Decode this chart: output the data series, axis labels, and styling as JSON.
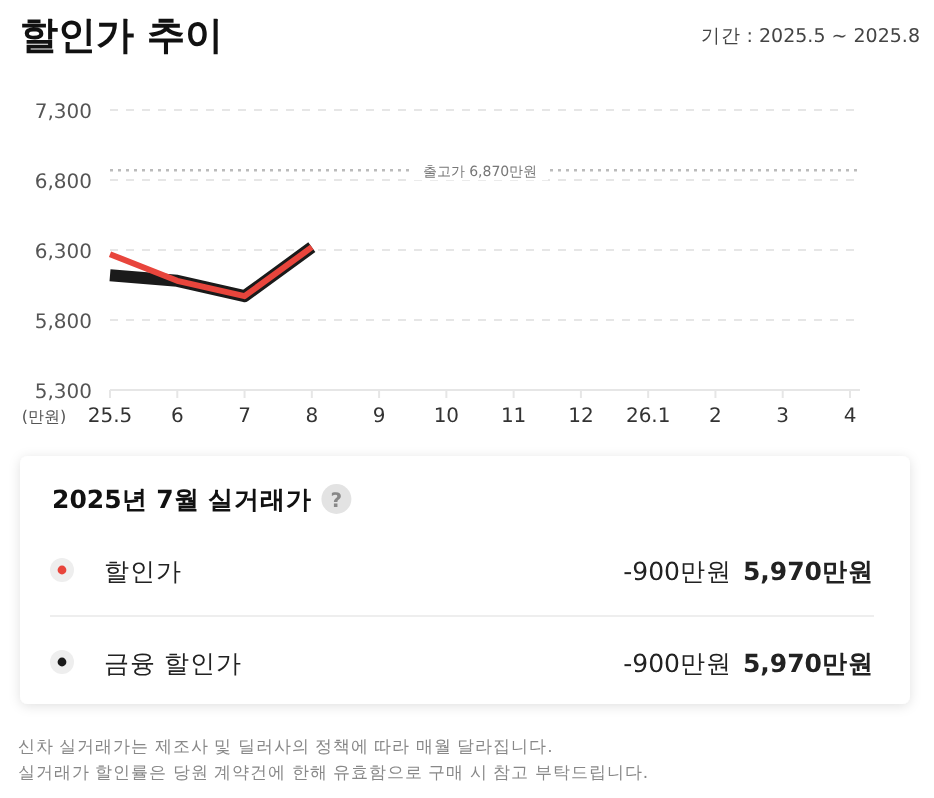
{
  "chart_data": {
    "type": "line",
    "title": "할인가 추이",
    "subtitle": "기간 : 2025.5 ~ 2025.8",
    "ylabel": "(만원)",
    "categories": [
      "25.5",
      "6",
      "7",
      "8",
      "9",
      "10",
      "11",
      "12",
      "26.1",
      "2",
      "3",
      "4"
    ],
    "ylim": [
      5300,
      7300
    ],
    "yticks": [
      {
        "value": 5300,
        "label": "5,300"
      },
      {
        "value": 5800,
        "label": "5,800"
      },
      {
        "value": 6300,
        "label": "6,300"
      },
      {
        "value": 6800,
        "label": "6,800"
      },
      {
        "value": 7300,
        "label": "7,300"
      }
    ],
    "grid": "y",
    "legend": "bottom",
    "marker": "none",
    "line_style": "solid",
    "ref_lines": [
      {
        "axis": "y",
        "value": 6870,
        "label": "출고가 6,870만원",
        "color": "#bbbbbb",
        "line_style": "dotted"
      }
    ],
    "series": [
      {
        "name": "금융 할인가",
        "color": "#1a1a1a",
        "values": [
          6120,
          6080,
          5970,
          6320,
          null,
          null,
          null,
          null,
          null,
          null,
          null,
          null
        ]
      },
      {
        "name": "할인가",
        "color": "#e8453c",
        "values": [
          6270,
          6080,
          5970,
          6320,
          null,
          null,
          null,
          null,
          null,
          null,
          null,
          null
        ]
      }
    ],
    "annotations": [
      "2025년 7월 실거래가",
      "?",
      "-900만원",
      "5,970만원",
      "-900만원",
      "5,970만원",
      "신차 실거래가는 제조사 및 딜러사의 정책에 따라 매월 달라집니다.",
      "실거래가 할인률은 당원 계약건에 한해 유효함으로 구매 시 참고 부탁드립니다."
    ]
  }
}
